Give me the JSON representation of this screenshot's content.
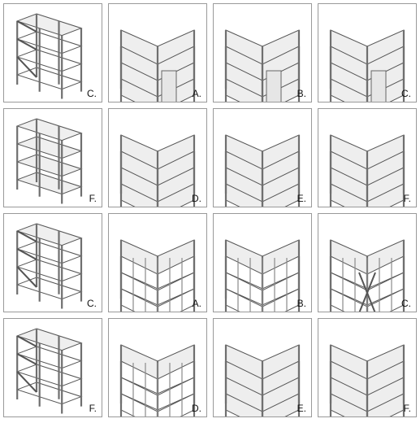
{
  "figure": {
    "tiles": [
      {
        "label": "C.",
        "model": "rect-braced"
      },
      {
        "label": "A.",
        "model": "L-wall"
      },
      {
        "label": "B.",
        "model": "L-wall"
      },
      {
        "label": "C.",
        "model": "L-wall"
      },
      {
        "label": "F.",
        "model": "rect-slab"
      },
      {
        "label": "D.",
        "model": "L-slab"
      },
      {
        "label": "E.",
        "model": "L-slab"
      },
      {
        "label": "F.",
        "model": "L-slab"
      },
      {
        "label": "C.",
        "model": "rect-braced"
      },
      {
        "label": "A.",
        "model": "L-frame"
      },
      {
        "label": "B.",
        "model": "L-frame"
      },
      {
        "label": "C.",
        "model": "L-braced"
      },
      {
        "label": "F.",
        "model": "rect-braced"
      },
      {
        "label": "D.",
        "model": "L-frame"
      },
      {
        "label": "E.",
        "model": "L-slab"
      },
      {
        "label": "F.",
        "model": "L-slab"
      }
    ]
  }
}
